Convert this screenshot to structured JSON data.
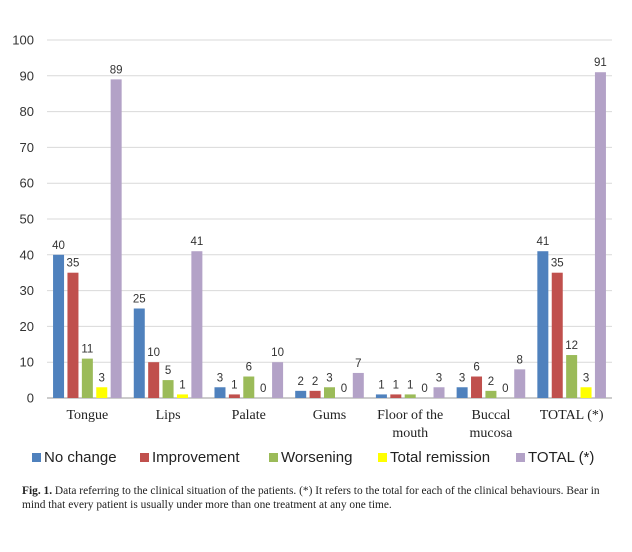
{
  "chart_data": {
    "type": "bar",
    "title": "",
    "xlabel": "",
    "ylabel": "",
    "ylim": [
      0,
      100
    ],
    "yticks": [
      0,
      10,
      20,
      30,
      40,
      50,
      60,
      70,
      80,
      90,
      100
    ],
    "grid": true,
    "legend_position": "bottom",
    "categories": [
      [
        "Tongue"
      ],
      [
        "Lips"
      ],
      [
        "Palate"
      ],
      [
        "Gums"
      ],
      [
        "Floor of the",
        "mouth"
      ],
      [
        "Buccal",
        "mucosa"
      ],
      [
        "TOTAL (*)"
      ]
    ],
    "series": [
      {
        "name": "No change",
        "color": "#4F81BD",
        "values": [
          40,
          25,
          3,
          2,
          1,
          3,
          41
        ]
      },
      {
        "name": "Improvement",
        "color": "#C0504D",
        "values": [
          35,
          10,
          1,
          2,
          1,
          6,
          35
        ]
      },
      {
        "name": "Worsening",
        "color": "#9BBB59",
        "values": [
          11,
          5,
          6,
          3,
          1,
          2,
          12
        ]
      },
      {
        "name": "Total remission",
        "color": "#FFFF00",
        "values": [
          3,
          1,
          0,
          0,
          0,
          0,
          3
        ]
      },
      {
        "name": "TOTAL (*)",
        "color": "#B3A2C7",
        "values": [
          89,
          41,
          10,
          7,
          3,
          8,
          91
        ]
      }
    ]
  },
  "caption": {
    "label": "Fig. 1.",
    "text": "Data referring to the clinical situation of the patients. (*) It refers to the total for each of the clinical behaviours. Bear in mind that every patient is usually under more than one treatment at any one time."
  }
}
